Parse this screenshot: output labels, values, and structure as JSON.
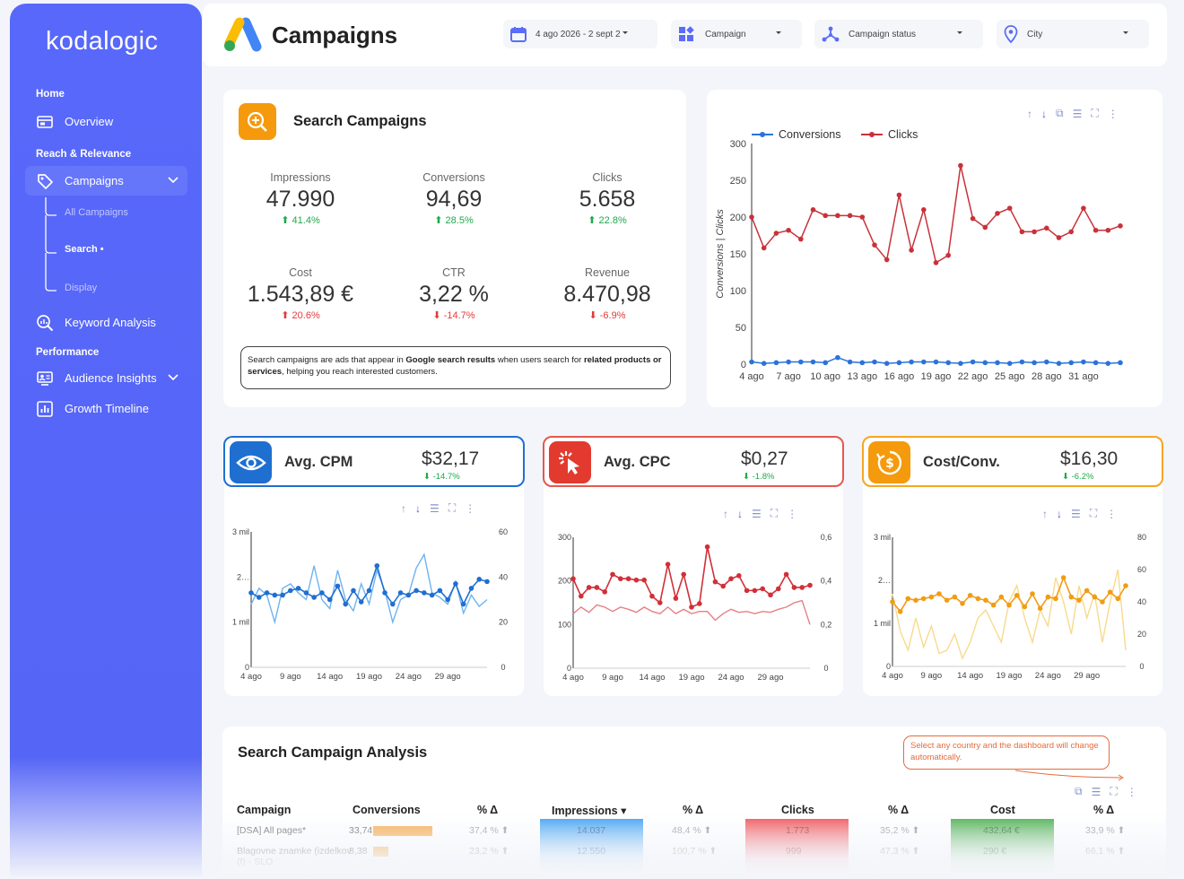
{
  "sidebar": {
    "logo": "kodalogic",
    "sections": {
      "home": "Home",
      "reach": "Reach & Relevance",
      "performance": "Performance"
    },
    "items": {
      "overview": "Overview",
      "campaigns": "Campaigns",
      "all_campaigns": "All Campaigns",
      "search": "Search •",
      "display": "Display",
      "keyword": "Keyword Analysis",
      "audience": "Audience Insights",
      "growth": "Growth Timeline"
    }
  },
  "header": {
    "title": "Campaigns",
    "filters": {
      "date": "4 ago 2026 - 2 sept 2",
      "campaign": "Campaign",
      "status": "Campaign status",
      "city": "City"
    }
  },
  "search_card": {
    "title": "Search Campaigns",
    "kpis": [
      {
        "label": "Impressions",
        "value": "47.990",
        "change": "41.4%",
        "dir": "up"
      },
      {
        "label": "Conversions",
        "value": "94,69",
        "change": "28.5%",
        "dir": "up"
      },
      {
        "label": "Clicks",
        "value": "5.658",
        "change": "22.8%",
        "dir": "up"
      },
      {
        "label": "Cost",
        "value": "1.543,89 €",
        "change": "20.6%",
        "dir": "up-red"
      },
      {
        "label": "CTR",
        "value": "3,22 %",
        "change": "-14.7%",
        "dir": "down"
      },
      {
        "label": "Revenue",
        "value": "8.470,98",
        "change": "-6.9%",
        "dir": "down"
      }
    ],
    "note": {
      "p1": "Search campaigns are ads that appear in ",
      "b1": "Google search results",
      "p2": " when users search for ",
      "b2": "related products or services",
      "p3": ", helping you reach interested customers."
    }
  },
  "metrics": [
    {
      "title": "Avg. CPM",
      "value": "$32,17",
      "change": "-14.7%",
      "color": "#1f6fd1",
      "border": "#1f6fd1"
    },
    {
      "title": "Avg. CPC",
      "value": "$0,27",
      "change": "-1.8%",
      "color": "#e23a2e",
      "border": "#e5584e"
    },
    {
      "title": "Cost/Conv.",
      "value": "$16,30",
      "change": "-6.2%",
      "color": "#f59a0c",
      "border": "#f5a623"
    }
  ],
  "chart_data": [
    {
      "type": "line",
      "legend": "top-left",
      "ylabel": "Conversions | Clicks",
      "ylim": [
        0,
        300
      ],
      "yticks": [
        "300",
        "250",
        "200",
        "150",
        "100",
        "50",
        "0"
      ],
      "xticks": [
        "4 ago",
        "7 ago",
        "10 ago",
        "13 ago",
        "16 ago",
        "19 ago",
        "22 ago",
        "25 ago",
        "28 ago",
        "31 ago"
      ],
      "series": [
        {
          "name": "Conversions",
          "color": "#2a73d9",
          "values": [
            3,
            1,
            2,
            3,
            3,
            3,
            2,
            9,
            3,
            2,
            3,
            1,
            2,
            3,
            3,
            3,
            2,
            1,
            3,
            2,
            2,
            1,
            3,
            2,
            3,
            1,
            2,
            3,
            2,
            1,
            2
          ]
        },
        {
          "name": "Clicks",
          "color": "#c8323a",
          "values": [
            200,
            158,
            178,
            182,
            170,
            210,
            202,
            202,
            202,
            200,
            162,
            142,
            230,
            155,
            210,
            138,
            148,
            270,
            198,
            186,
            205,
            212,
            180,
            180,
            185,
            172,
            180,
            212,
            182,
            182,
            188
          ]
        }
      ]
    },
    {
      "type": "line",
      "y_left_ticks": [
        "3 mil",
        "2…",
        "1 mil",
        "0"
      ],
      "y_right_ticks": [
        "60",
        "40",
        "20",
        "0"
      ],
      "ylim_right": [
        0,
        60
      ],
      "xticks": [
        "4 ago",
        "9 ago",
        "14 ago",
        "19 ago",
        "24 ago",
        "29 ago"
      ],
      "series": [
        {
          "color": "#1f6fd1",
          "values": [
            33,
            31,
            33,
            32,
            32,
            34,
            35,
            33,
            31,
            33,
            30,
            36,
            28,
            34,
            29,
            34,
            45,
            33,
            28,
            33,
            32,
            34,
            33,
            32,
            34,
            30,
            37,
            28,
            35,
            39,
            38
          ]
        },
        {
          "color": "#6fb3ef",
          "values": [
            28,
            35,
            32,
            20,
            35,
            37,
            33,
            30,
            45,
            30,
            26,
            43,
            30,
            25,
            37,
            28,
            43,
            34,
            20,
            30,
            32,
            44,
            50,
            33,
            31,
            28,
            38,
            24,
            32,
            27,
            30
          ]
        }
      ]
    },
    {
      "type": "line",
      "y_left_ticks": [
        "300",
        "200",
        "100",
        "0"
      ],
      "y_right_ticks": [
        "0,6",
        "0,4",
        "0,2",
        "0"
      ],
      "ylim_left": [
        0,
        300
      ],
      "xticks": [
        "4 ago",
        "9 ago",
        "14 ago",
        "19 ago",
        "24 ago",
        "29 ago"
      ],
      "series": [
        {
          "color": "#d22f38",
          "values": [
            205,
            165,
            185,
            185,
            175,
            215,
            205,
            205,
            202,
            202,
            165,
            150,
            238,
            160,
            215,
            140,
            148,
            278,
            198,
            188,
            205,
            212,
            178,
            178,
            182,
            168,
            182,
            215,
            185,
            185,
            190
          ]
        },
        {
          "color": "#e87f85",
          "values": [
            125,
            140,
            128,
            145,
            140,
            130,
            140,
            135,
            128,
            140,
            130,
            125,
            140,
            125,
            135,
            125,
            130,
            130,
            110,
            125,
            135,
            128,
            130,
            125,
            130,
            128,
            135,
            140,
            150,
            155,
            100
          ]
        }
      ]
    },
    {
      "type": "line",
      "y_left_ticks": [
        "3 mil",
        "2…",
        "1 mil",
        "0"
      ],
      "y_right_ticks": [
        "80",
        "60",
        "40",
        "20",
        "0"
      ],
      "ylim_right": [
        0,
        80
      ],
      "xticks": [
        "4 ago",
        "9 ago",
        "14 ago",
        "19 ago",
        "24 ago",
        "29 ago"
      ],
      "series": [
        {
          "color": "#f19c14",
          "values": [
            40,
            34,
            42,
            41,
            42,
            43,
            45,
            41,
            43,
            39,
            44,
            42,
            41,
            38,
            43,
            38,
            44,
            37,
            45,
            36,
            43,
            42,
            55,
            43,
            41,
            47,
            43,
            40,
            46,
            42,
            50
          ]
        },
        {
          "color": "#f8da8e",
          "values": [
            45,
            22,
            10,
            30,
            12,
            25,
            8,
            10,
            20,
            5,
            15,
            30,
            35,
            25,
            15,
            40,
            50,
            30,
            15,
            35,
            25,
            55,
            40,
            20,
            50,
            30,
            45,
            15,
            40,
            60,
            10
          ]
        }
      ]
    }
  ],
  "table": {
    "title": "Search Campaign Analysis",
    "hint": "Select any country and the dashboard will change automatically.",
    "headers": [
      "Campaign",
      "Conversions",
      "% Δ",
      "Impressions ▾",
      "% Δ",
      "Clicks",
      "% Δ",
      "Cost",
      "% Δ"
    ],
    "rows": [
      {
        "campaign": "[DSA] All pages*",
        "conv": "33,74",
        "conv_frac": 1.0,
        "conv_d": "37,4 % ⬆",
        "impr": "14.037",
        "impr_d": "48,4 % ⬆",
        "clicks": "1.773",
        "clicks_d": "35,2 % ⬆",
        "cost": "432,64 €",
        "cost_d": "33,9 % ⬆"
      },
      {
        "campaign": "Blagovne znamke (izdelkov (f) - SLO",
        "conv": "8,38",
        "conv_frac": 0.25,
        "conv_d": "23,2 % ⬆",
        "impr": "12.550",
        "impr_d": "100,7 % ⬆",
        "clicks": "999",
        "clicks_d": "47,3 % ⬆",
        "cost": "290 €",
        "cost_d": "66,1 % ⬆"
      }
    ]
  },
  "colors": {
    "sidebar": "#5868fa",
    "accent": "#5b6cf9",
    "up": "#1fa94a",
    "down": "#e23a3a"
  }
}
